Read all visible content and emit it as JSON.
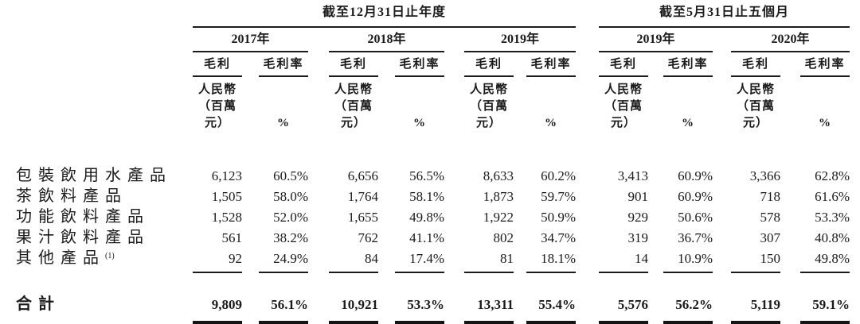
{
  "table": {
    "col_groups": [
      {
        "title": "截至12月31日止年度",
        "years": [
          {
            "label": "2017年"
          },
          {
            "label": "2018年"
          },
          {
            "label": "2019年"
          }
        ]
      },
      {
        "title": "截至5月31日止五個月",
        "years": [
          {
            "label": "2019年"
          },
          {
            "label": "2020年"
          }
        ]
      }
    ],
    "sub_headers": {
      "gp": "毛利",
      "gpm": "毛利率",
      "currency_line1": "人民幣",
      "currency_line2": "（百萬元）",
      "percent": "%"
    },
    "rows": [
      {
        "label": "包裝飲用水產品",
        "footnote": "",
        "values": [
          "6,123",
          "60.5%",
          "6,656",
          "56.5%",
          "8,633",
          "60.2%",
          "3,413",
          "60.9%",
          "3,366",
          "62.8%"
        ]
      },
      {
        "label": "茶飲料產品",
        "footnote": "",
        "values": [
          "1,505",
          "58.0%",
          "1,764",
          "58.1%",
          "1,873",
          "59.7%",
          "901",
          "60.9%",
          "718",
          "61.6%"
        ]
      },
      {
        "label": "功能飲料產品",
        "footnote": "",
        "values": [
          "1,528",
          "52.0%",
          "1,655",
          "49.8%",
          "1,922",
          "50.9%",
          "929",
          "50.6%",
          "578",
          "53.3%"
        ]
      },
      {
        "label": "果汁飲料產品",
        "footnote": "",
        "values": [
          "561",
          "38.2%",
          "762",
          "41.1%",
          "802",
          "34.7%",
          "319",
          "36.7%",
          "307",
          "40.8%"
        ]
      },
      {
        "label": "其他產品",
        "footnote": "(1)",
        "values": [
          "92",
          "24.9%",
          "84",
          "17.4%",
          "81",
          "18.1%",
          "14",
          "10.9%",
          "150",
          "49.8%"
        ]
      }
    ],
    "total_row": {
      "label": "合計",
      "values": [
        "9,809",
        "56.1%",
        "10,921",
        "53.3%",
        "13,311",
        "55.4%",
        "5,576",
        "56.2%",
        "5,119",
        "59.1%"
      ]
    },
    "colors": {
      "text": "#1b1b1b",
      "rule": "#1b1b1b",
      "double_rule_bar": "#141414",
      "double_rule_line": "#8a8a8a",
      "background": "#ffffff"
    }
  }
}
